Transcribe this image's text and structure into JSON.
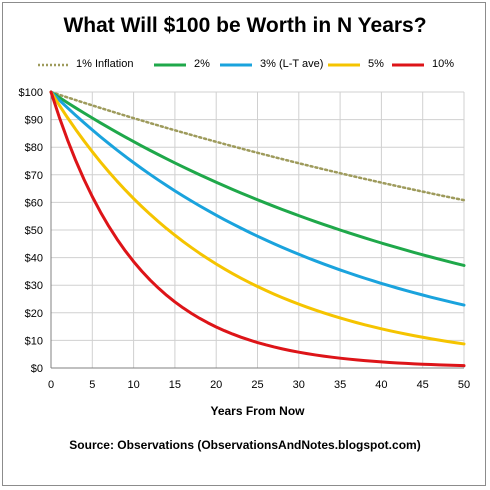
{
  "chart_data": {
    "type": "line",
    "title": "What Will $100 be Worth in N Years?",
    "xlabel": "Years From Now",
    "ylabel": "",
    "source": "Source: Observations (ObservationsAndNotes.blogspot.com)",
    "xlim": [
      0,
      50
    ],
    "ylim": [
      0,
      100
    ],
    "xticks": [
      0,
      5,
      10,
      15,
      20,
      25,
      30,
      35,
      40,
      45,
      50
    ],
    "yticks": [
      0,
      10,
      20,
      30,
      40,
      50,
      60,
      70,
      80,
      90,
      100
    ],
    "ytick_labels": [
      "$0",
      "$10",
      "$20",
      "$30",
      "$40",
      "$50",
      "$60",
      "$70",
      "$80",
      "$90",
      "$100"
    ],
    "grid": true,
    "legend_position": "top",
    "series": [
      {
        "name": "1% Inflation",
        "rate": 0.01,
        "color": "#9e9b5c",
        "style": "dotted"
      },
      {
        "name": "2%",
        "rate": 0.02,
        "color": "#1fa84a",
        "style": "solid"
      },
      {
        "name": "3% (L-T ave)",
        "rate": 0.03,
        "color": "#1aa3dd",
        "style": "solid"
      },
      {
        "name": "5%",
        "rate": 0.05,
        "color": "#f5c400",
        "style": "solid"
      },
      {
        "name": "10%",
        "rate": 0.1,
        "color": "#dd1418",
        "style": "solid"
      }
    ]
  }
}
